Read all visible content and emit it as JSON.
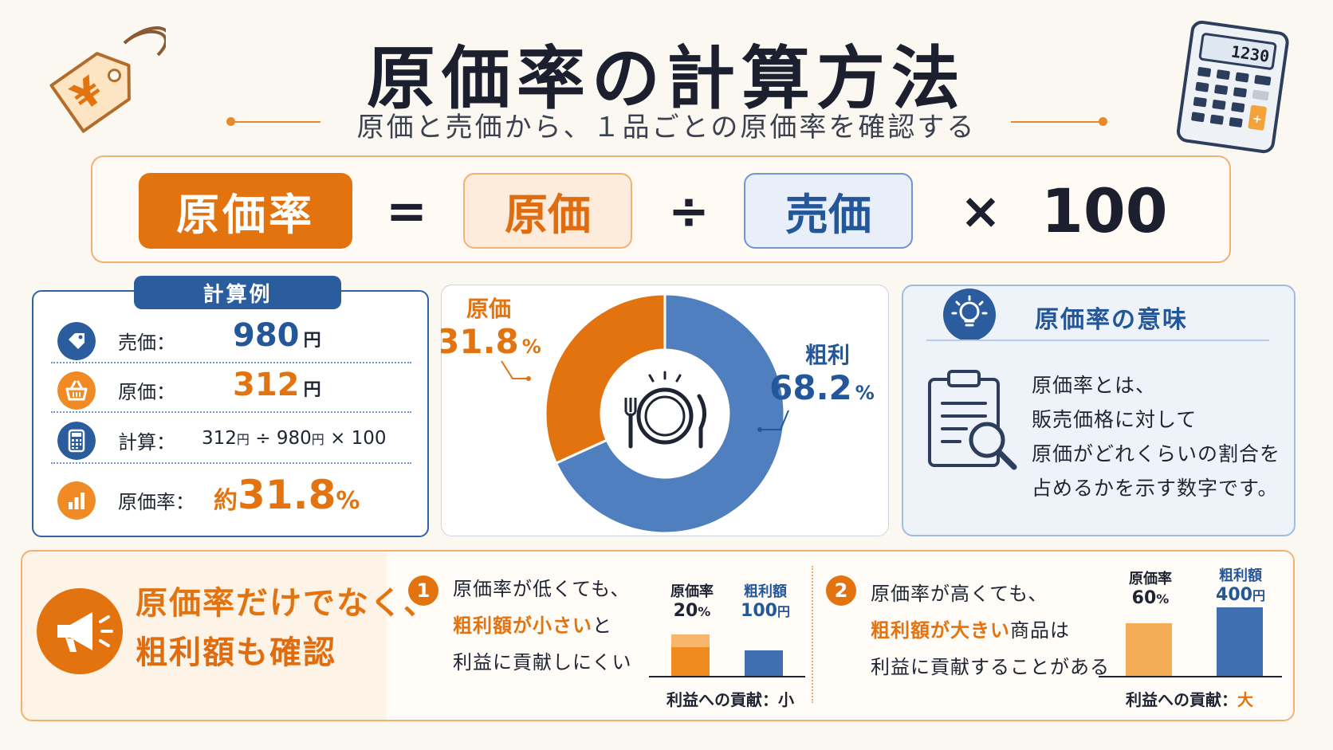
{
  "header": {
    "title": "原価率の計算方法",
    "subtitle": "原価と売価から、１品ごとの原価率を確認する",
    "tag_symbol": "¥",
    "calculator_display": "1230",
    "calculator_plus": "+"
  },
  "formula": {
    "result": "原価率",
    "equals": "=",
    "cost": "原価",
    "divide": "÷",
    "price": "売価",
    "multiply": "×",
    "factor": "100"
  },
  "example": {
    "tab_label": "計算例",
    "rows": [
      {
        "label": "売価：",
        "value": "980",
        "unit": "円",
        "icon": "price-tag-icon"
      },
      {
        "label": "原価：",
        "value": "312",
        "unit": "円",
        "icon": "basket-icon"
      },
      {
        "label": "計算：",
        "expr": "312 円 ÷ 980 円 × 100",
        "expr_a": "312",
        "expr_b": "円",
        "expr_c": "÷",
        "expr_d": "980",
        "expr_e": "円",
        "expr_f": "× 100",
        "icon": "calculator-icon"
      },
      {
        "label": "原価率：",
        "prefix": "約",
        "value": "31.8",
        "unit": "%",
        "icon": "bar-chart-icon"
      }
    ]
  },
  "chart_data": {
    "type": "pie",
    "donut": true,
    "slices": [
      {
        "name": "原価",
        "value": 31.8,
        "unit": "%",
        "color": "#e3730f"
      },
      {
        "name": "粗利",
        "value": 68.2,
        "unit": "%",
        "color": "#4f7fbf"
      }
    ],
    "center_icon": "plate-cutlery-icon"
  },
  "meaning": {
    "title": "原価率の意味",
    "lines": [
      "原価率とは、",
      "販売価格に対して",
      "原価がどれくらいの割合を",
      "占めるかを示す数字です。"
    ]
  },
  "bottom": {
    "headline": [
      "原価率だけでなく、",
      "粗利額も確認"
    ],
    "point1": {
      "number": "1",
      "line1": "原価率が低くても、",
      "line2_highlight": "粗利額が小さい",
      "line2_rest": "と",
      "line3": "利益に貢献しにくい",
      "bar_labels": [
        "原価率",
        "粗利額"
      ],
      "bar_values": [
        "20",
        "100"
      ],
      "bar_units": [
        "%",
        "円"
      ],
      "contribution_label": "利益への貢献：",
      "contribution_value": "小"
    },
    "point2": {
      "number": "2",
      "line1": "原価率が高くても、",
      "line2_highlight": "粗利額が大きい",
      "line2_rest": "商品は",
      "line3": "利益に貢献することがある",
      "bar_labels": [
        "原価率",
        "粗利額"
      ],
      "bar_values": [
        "60",
        "400"
      ],
      "bar_units": [
        "%",
        "円"
      ],
      "contribution_label": "利益への貢献：",
      "contribution_value": "大"
    }
  },
  "colors": {
    "orange": "#e3730f",
    "blue": "#24569a",
    "light_orange": "#fdebdc",
    "light_blue": "#e8eff9"
  }
}
